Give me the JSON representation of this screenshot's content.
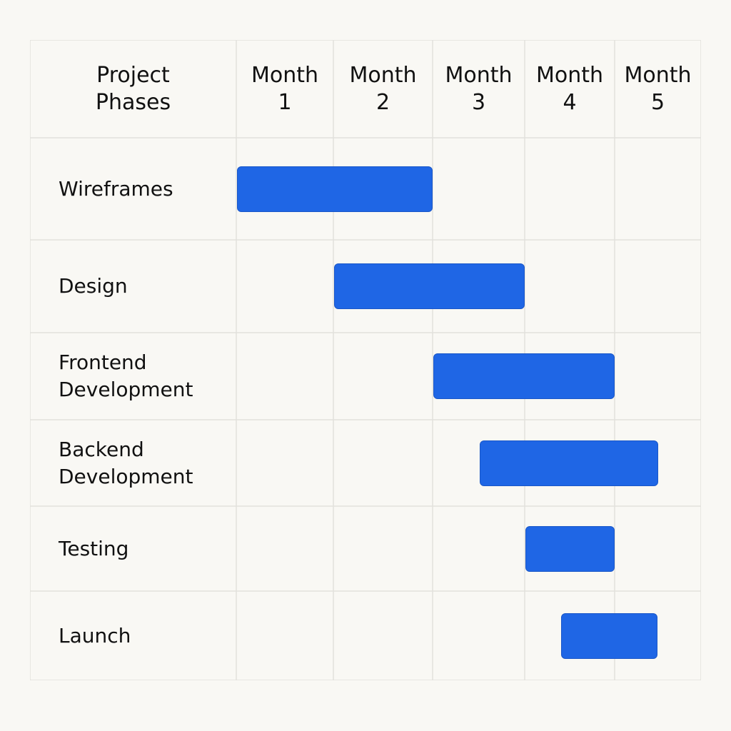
{
  "chart_data": {
    "type": "gantt",
    "corner_header": "Project\nPhases",
    "months": [
      "Month\n1",
      "Month\n2",
      "Month\n3",
      "Month\n4",
      "Month\n5"
    ],
    "tasks": [
      {
        "name": "Wireframes",
        "start": 0.0,
        "end": 2.0
      },
      {
        "name": "Design",
        "start": 1.0,
        "end": 3.0
      },
      {
        "name": "Frontend\nDevelopment",
        "start": 2.0,
        "end": 4.0
      },
      {
        "name": "Backend\nDevelopment",
        "start": 2.5,
        "end": 4.5
      },
      {
        "name": "Testing",
        "start": 3.0,
        "end": 4.0
      },
      {
        "name": "Launch",
        "start": 3.4,
        "end": 4.5
      }
    ],
    "bar_color": "#1f66e5",
    "grid_color": "#e2e1dc"
  }
}
